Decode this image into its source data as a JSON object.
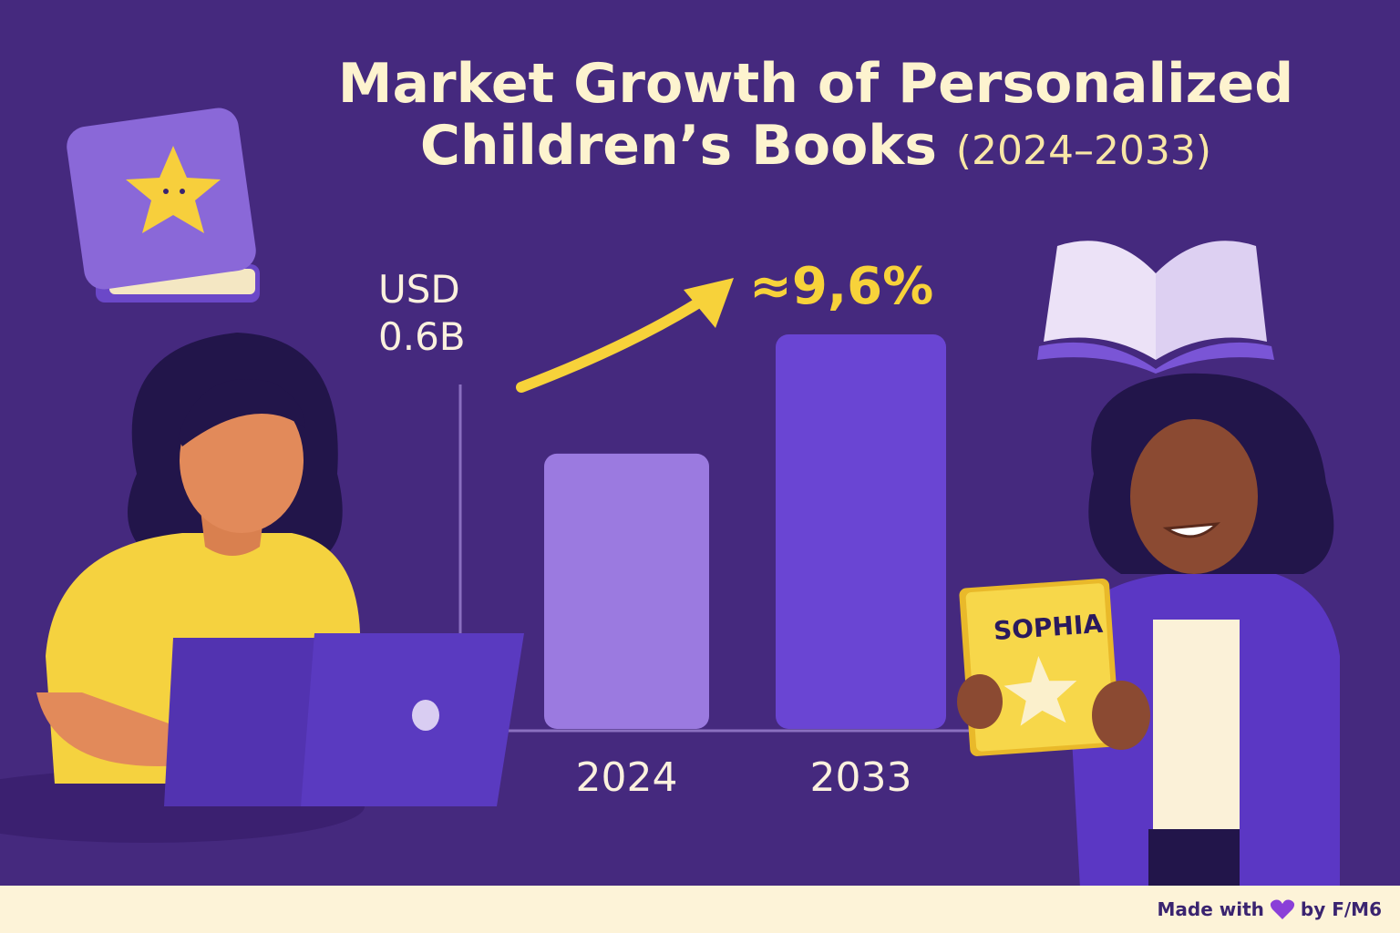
{
  "chart_data": {
    "type": "bar",
    "title": "Market Growth of Personalized Children’s Books",
    "subtitle": "(2024–2033)",
    "categories": [
      "2024",
      "2033"
    ],
    "values": [
      0.6,
      0.86
    ],
    "value_labels": [
      "USD 0.6B",
      null
    ],
    "colors": [
      "#9b7ae0",
      "#6a45d3"
    ],
    "annotation": "≈9,6%"
  },
  "illustration": {
    "book_name": "SOPHIA"
  },
  "footer": {
    "text_before": "Made with",
    "text_after": "by F/M6"
  }
}
